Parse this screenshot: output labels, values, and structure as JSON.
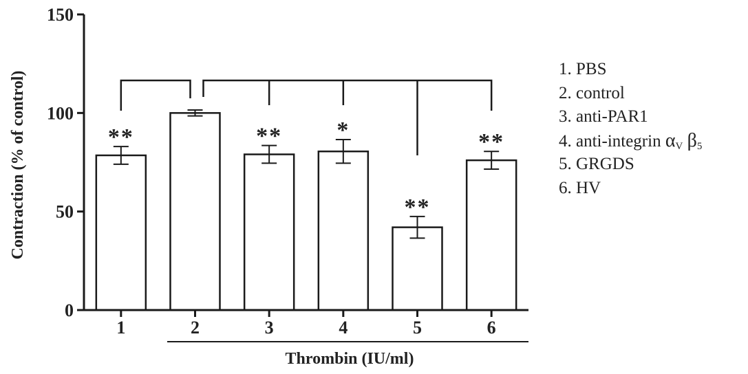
{
  "chart_data": {
    "type": "bar",
    "categories": [
      "1",
      "2",
      "3",
      "4",
      "5",
      "6"
    ],
    "values": [
      78.5,
      100,
      79,
      80.5,
      42,
      76
    ],
    "errors": [
      4.5,
      1.5,
      4.5,
      6,
      5.5,
      4.5
    ],
    "significance": [
      "**",
      "",
      "**",
      "*",
      "**",
      "**"
    ],
    "ylabel": "Contraction (% of control)",
    "group_label": "Thrombin (IU/ml)",
    "ylim": [
      0,
      150
    ],
    "yticks": [
      0,
      50,
      100,
      150
    ],
    "grid": false,
    "bar_color": "#ffffff",
    "edge_color": "#1a1a1a",
    "legend_position": "right",
    "legend": [
      {
        "num": "1.",
        "text": "PBS"
      },
      {
        "num": "2.",
        "text": "control"
      },
      {
        "num": "3.",
        "text": "anti-PAR1"
      },
      {
        "num": "4.",
        "text": "anti-integrin",
        "alpha": "α",
        "alpha_sub": "V",
        "beta": "β",
        "beta_sub": "5"
      },
      {
        "num": "5.",
        "text": "GRGDS"
      },
      {
        "num": "6.",
        "text": "HV"
      }
    ]
  }
}
